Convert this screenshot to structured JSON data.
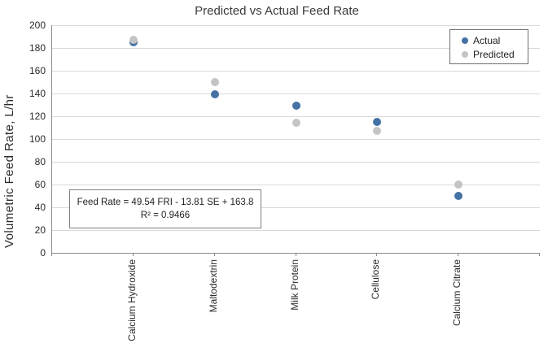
{
  "title": "Predicted vs Actual Feed Rate",
  "y_axis": {
    "label": "Volumetric Feed Rate, L/hr"
  },
  "legend": {
    "items": [
      {
        "label": "Actual"
      },
      {
        "label": "Predicted"
      }
    ]
  },
  "annotation": {
    "line1": "Feed Rate = 49.54 FRI - 13.81 SE + 163.8",
    "line2": "R² = 0.9466"
  },
  "chart_data": {
    "type": "scatter",
    "title": "Predicted vs Actual Feed Rate",
    "xlabel": "",
    "ylabel": "Volumetric Feed Rate, L/hr",
    "categories": [
      "Calcium Hydroxide",
      "Maltodextrin",
      "Milk Protein",
      "Cellulose",
      "Calcium Citrate"
    ],
    "series": [
      {
        "name": "Actual",
        "color": "#4472a4",
        "values": [
          185,
          139,
          129,
          115,
          50
        ]
      },
      {
        "name": "Predicted",
        "color": "#c4c4c4",
        "values": [
          187,
          150,
          114,
          107,
          60
        ]
      }
    ],
    "ylim": [
      0,
      200
    ],
    "ytick_step": 20,
    "grid": true,
    "legend_position": "top-right",
    "annotation": "Feed Rate = 49.54 FRI - 13.81 SE + 163.8 ; R² = 0.9466"
  }
}
